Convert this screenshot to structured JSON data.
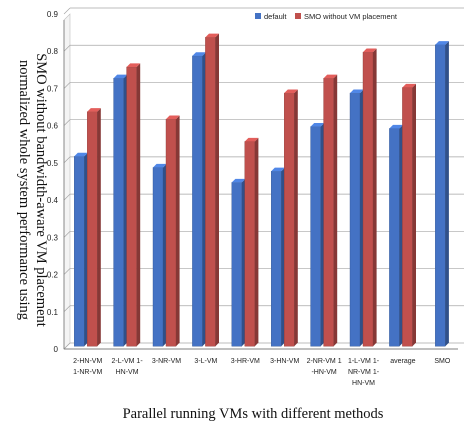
{
  "chart_data": {
    "type": "bar",
    "title": "",
    "xlabel": "Parallel running VMs with different methods",
    "ylabel_lines": [
      "normalized whole system performance using",
      "SMO without bandwidth-aware VM placement"
    ],
    "ylim": [
      0,
      0.9
    ],
    "yticks": [
      "0",
      "0.1",
      "0.2",
      "0.3",
      "0.4",
      "0.5",
      "0.6",
      "0.7",
      "0.8",
      "0.9"
    ],
    "grid": true,
    "legend_position": "top-right",
    "categories": [
      [
        "2-HN-VM",
        "1-NR-VM"
      ],
      [
        "2-L-VM 1-",
        "HN-VM"
      ],
      [
        "3-NR-VM"
      ],
      [
        "3-L-VM"
      ],
      [
        "3-HR-VM"
      ],
      [
        "3-HN-VM"
      ],
      [
        "2-NR-VM 1",
        "-HN-VM"
      ],
      [
        "1-L-VM 1-",
        "NR-VM 1-",
        "HN-VM"
      ],
      [
        "average"
      ],
      [
        "SMO"
      ]
    ],
    "series": [
      {
        "name": "default",
        "color": "#4472C4",
        "values": [
          0.51,
          0.72,
          0.48,
          0.78,
          0.44,
          0.47,
          0.59,
          0.68,
          0.585,
          0.81
        ]
      },
      {
        "name": "SMO without VM placement",
        "color": "#C0504D",
        "values": [
          0.63,
          0.75,
          0.61,
          0.83,
          0.55,
          0.68,
          0.72,
          0.79,
          0.695,
          null
        ]
      }
    ]
  }
}
